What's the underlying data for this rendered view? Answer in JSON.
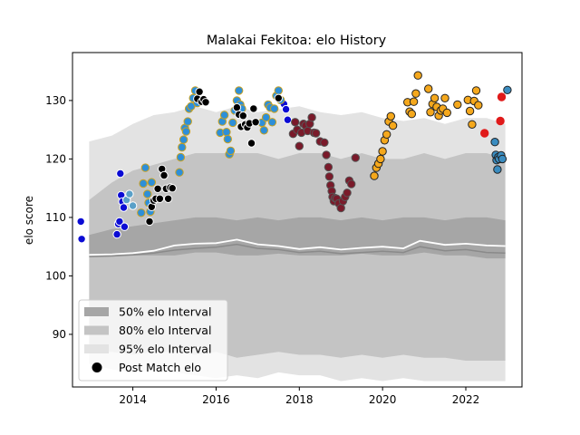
{
  "chart_data": {
    "type": "scatter",
    "title": "Malakai Fekitoa: elo History",
    "xlabel": "",
    "ylabel": "elo score",
    "xlim": [
      2012.55,
      2023.35
    ],
    "ylim": [
      81.0,
      138.2
    ],
    "x_ticks": [
      2014,
      2016,
      2018,
      2020,
      2022
    ],
    "y_ticks": [
      90,
      100,
      110,
      120,
      130
    ],
    "grid": false,
    "legend_position": "lower left",
    "legend": [
      {
        "label": "50% elo Interval",
        "kind": "patch",
        "color": "#a6a6a6"
      },
      {
        "label": "80% elo Interval",
        "kind": "patch",
        "color": "#c4c4c4"
      },
      {
        "label": "95% elo Interval",
        "kind": "patch",
        "color": "#e3e3e3"
      },
      {
        "label": "Post Match elo",
        "kind": "marker",
        "color": "#000000"
      }
    ],
    "bands": {
      "x": [
        2012.95,
        2013.5,
        2014.0,
        2014.5,
        2015.0,
        2015.5,
        2016.0,
        2016.5,
        2017.0,
        2017.5,
        2018.0,
        2018.5,
        2019.0,
        2019.5,
        2020.0,
        2020.5,
        2021.0,
        2021.5,
        2022.0,
        2022.5,
        2022.95
      ],
      "p95_upper": [
        123,
        124,
        126,
        127.5,
        128,
        129,
        128,
        129,
        128,
        128.5,
        129,
        128,
        127.5,
        128,
        127,
        126.5,
        127,
        126,
        127,
        127,
        126
      ],
      "p80_upper": [
        113,
        116,
        118,
        119,
        120,
        121,
        121,
        121,
        121,
        120,
        121,
        121,
        120,
        121,
        120,
        120,
        121,
        120,
        121,
        121,
        120
      ],
      "p50_upper": [
        107,
        108,
        108.5,
        109,
        109.5,
        110,
        110,
        109.5,
        110,
        109.5,
        110,
        110,
        109.5,
        110,
        109.5,
        110,
        110,
        109.5,
        110,
        110,
        109.5
      ],
      "p50_lower": [
        103.5,
        103.5,
        103.5,
        103.5,
        103.5,
        104,
        104,
        103.5,
        103.5,
        103.8,
        103.5,
        103.5,
        103.5,
        103.8,
        103.5,
        103.5,
        104,
        103.5,
        103.5,
        103,
        103
      ],
      "p80_lower": [
        87,
        87,
        86.5,
        87,
        87,
        86.5,
        87,
        86,
        86.5,
        87,
        86.5,
        86.5,
        86,
        86.5,
        86,
        86.5,
        86,
        86,
        85.5,
        85.5,
        85.5
      ],
      "p95_lower": [
        85,
        84,
        83.5,
        84,
        83.5,
        83,
        82.5,
        83,
        82.5,
        83.5,
        83,
        83,
        82,
        82.5,
        82,
        82.5,
        82,
        82,
        82,
        82,
        82
      ]
    },
    "median_lines": [
      {
        "color": "#ffffff",
        "width": 1.8,
        "x": [
          2012.95,
          2013.5,
          2014.0,
          2014.5,
          2015.0,
          2015.5,
          2016.0,
          2016.5,
          2017.0,
          2017.5,
          2018.0,
          2018.5,
          2019.0,
          2019.5,
          2020.0,
          2020.5,
          2020.9,
          2021.5,
          2022.0,
          2022.5,
          2022.95
        ],
        "y": [
          103.6,
          103.7,
          103.9,
          104.3,
          105.2,
          105.5,
          105.6,
          106.2,
          105.4,
          105.1,
          104.6,
          104.9,
          104.5,
          104.8,
          105.0,
          104.7,
          106.0,
          105.3,
          105.5,
          105.2,
          105.1
        ]
      },
      {
        "color": "#8a8a8a",
        "width": 1.5,
        "x": [
          2012.95,
          2013.5,
          2014.0,
          2014.5,
          2015.0,
          2015.5,
          2016.0,
          2016.5,
          2017.0,
          2017.5,
          2018.0,
          2018.5,
          2019.0,
          2019.5,
          2020.0,
          2020.5,
          2020.9,
          2021.5,
          2022.0,
          2022.5,
          2022.95
        ],
        "y": [
          103.3,
          103.4,
          103.6,
          103.9,
          104.4,
          104.7,
          104.9,
          105.4,
          104.7,
          104.5,
          104.0,
          104.2,
          103.8,
          104.0,
          104.2,
          104.0,
          105.0,
          104.3,
          104.5,
          104.0,
          103.9
        ]
      }
    ],
    "series": [
      {
        "color": "#0b0bd4",
        "edge": "#ffffff",
        "x": [
          2012.75,
          2012.77,
          2013.62,
          2013.65,
          2013.68,
          2013.72,
          2013.75,
          2013.78,
          2013.7,
          2013.8,
          2017.63,
          2017.68,
          2017.72
        ],
        "y": [
          109.3,
          106.3,
          107.1,
          108.9,
          109.3,
          113.8,
          112.7,
          111.7,
          117.5,
          108.4,
          129.4,
          128.5,
          126.7
        ]
      },
      {
        "color": "#5aa0c8",
        "edge": "#ffffff",
        "x": [
          2013.85,
          2013.92,
          2014.0
        ],
        "y": [
          113.0,
          114.0,
          112.0
        ]
      },
      {
        "color": "#2e8fd8",
        "edge": "#c8a020",
        "x": [
          2014.2,
          2014.25,
          2014.3,
          2014.35,
          2014.38,
          2014.42,
          2014.45,
          2015.12,
          2015.15,
          2015.18,
          2015.22,
          2015.25,
          2015.28,
          2015.32,
          2015.35,
          2015.4,
          2015.45,
          2015.5,
          2015.55,
          2016.1,
          2016.15,
          2016.2,
          2016.25,
          2016.28,
          2016.32,
          2016.35,
          2016.4,
          2016.45,
          2016.5,
          2016.55,
          2016.58,
          2016.62,
          2017.1,
          2017.15,
          2017.2,
          2017.25,
          2017.3,
          2017.35,
          2017.4,
          2017.45,
          2017.5,
          2017.55
        ],
        "y": [
          110.8,
          115.8,
          118.5,
          114.0,
          112.5,
          111.0,
          116.0,
          117.7,
          120.3,
          122.0,
          123.3,
          125.3,
          124.7,
          126.4,
          128.6,
          129.0,
          130.4,
          131.7,
          129.6,
          124.5,
          126.4,
          127.5,
          124.6,
          123.4,
          120.8,
          121.4,
          126.2,
          128.3,
          130.0,
          131.7,
          129.3,
          128.6,
          126.2,
          124.9,
          127.1,
          129.3,
          128.8,
          126.3,
          128.6,
          130.8,
          131.7,
          130.1
        ]
      },
      {
        "color": "#000000",
        "edge": "#ffffff",
        "x": [
          2014.4,
          2014.45,
          2014.5,
          2014.55,
          2014.6,
          2014.65,
          2014.7,
          2014.75,
          2014.8,
          2014.85,
          2014.9,
          2014.95,
          2015.55,
          2015.6,
          2015.65,
          2015.7,
          2015.75,
          2016.5,
          2016.55,
          2016.6,
          2016.65,
          2016.7,
          2016.75,
          2016.8,
          2016.85,
          2016.9,
          2016.95,
          2017.5
        ],
        "y": [
          109.3,
          111.8,
          112.9,
          113.2,
          114.9,
          113.2,
          118.3,
          117.2,
          114.9,
          113.2,
          115.1,
          115.0,
          130.3,
          131.5,
          129.8,
          130.2,
          129.7,
          128.8,
          127.6,
          125.5,
          127.4,
          125.9,
          125.4,
          126.1,
          122.7,
          128.6,
          126.3,
          130.4
        ]
      },
      {
        "color": "#7a1a2a",
        "edge": "#555555",
        "x": [
          2017.85,
          2017.9,
          2017.95,
          2018.0,
          2018.05,
          2018.1,
          2018.15,
          2018.2,
          2018.25,
          2018.3,
          2018.35,
          2018.4,
          2018.5,
          2018.6,
          2018.65,
          2018.7,
          2018.72,
          2018.75,
          2018.78,
          2018.8,
          2018.83,
          2018.86,
          2018.9,
          2018.95,
          2019.0,
          2019.05,
          2019.1,
          2019.15,
          2019.2,
          2019.25,
          2019.35
        ],
        "y": [
          124.3,
          126.3,
          125.0,
          122.2,
          124.5,
          126.0,
          125.7,
          124.8,
          126.0,
          127.1,
          124.5,
          124.4,
          123.0,
          122.8,
          120.7,
          118.6,
          117.0,
          115.5,
          114.5,
          113.5,
          112.8,
          113.3,
          113.2,
          112.4,
          111.6,
          112.8,
          113.5,
          114.2,
          116.3,
          115.7,
          120.2
        ]
      },
      {
        "color": "#f5a81c",
        "edge": "#222222",
        "x": [
          2019.8,
          2019.85,
          2019.9,
          2019.95,
          2020.0,
          2020.05,
          2020.1,
          2020.15,
          2020.2,
          2020.25,
          2020.6,
          2020.65,
          2020.7,
          2020.75,
          2020.8,
          2020.85,
          2021.1,
          2021.15,
          2021.2,
          2021.25,
          2021.3,
          2021.35,
          2021.4,
          2021.45,
          2021.5,
          2021.55,
          2021.8,
          2022.05,
          2022.1,
          2022.15,
          2022.2,
          2022.25,
          2022.3
        ],
        "y": [
          117.1,
          118.5,
          119.2,
          120.0,
          121.3,
          123.2,
          124.2,
          126.4,
          127.3,
          125.7,
          129.7,
          128.1,
          127.7,
          129.8,
          131.2,
          134.3,
          132.0,
          128.0,
          129.4,
          130.4,
          128.9,
          127.4,
          128.3,
          128.6,
          130.4,
          127.9,
          129.3,
          130.1,
          128.2,
          125.9,
          129.9,
          131.7,
          129.2
        ]
      },
      {
        "color": "#e01a1a",
        "edge": "#e01a1a",
        "x": [
          2022.45,
          2022.83,
          2022.86
        ],
        "y": [
          124.4,
          126.5,
          130.6
        ]
      },
      {
        "color": "#3a8cc0",
        "edge": "#222222",
        "x": [
          2022.7,
          2022.72,
          2022.74,
          2022.76,
          2022.78,
          2022.8,
          2022.85,
          2022.88,
          2023.0
        ],
        "y": [
          122.9,
          120.7,
          119.8,
          118.2,
          120.3,
          120.0,
          120.6,
          120.0,
          131.8
        ]
      }
    ]
  }
}
